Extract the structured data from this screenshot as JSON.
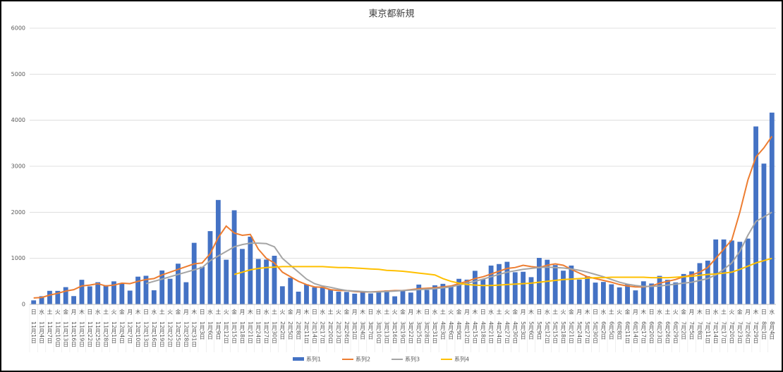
{
  "chart_data": {
    "type": "bar",
    "title": "東京都新規",
    "categories": [
      "11月1日",
      "11月4日",
      "11月7日",
      "11月10日",
      "11月13日",
      "11月16日",
      "11月19日",
      "11月22日",
      "11月25日",
      "11月28日",
      "12月1日",
      "12月4日",
      "12月7日",
      "12月10日",
      "12月13日",
      "12月16日",
      "12月19日",
      "12月22日",
      "12月25日",
      "12月28日",
      "12月31日",
      "1月3日",
      "1月6日",
      "1月9日",
      "1月12日",
      "1月15日",
      "1月18日",
      "1月21日",
      "1月24日",
      "1月27日",
      "1月30日",
      "2月2日",
      "2月5日",
      "2月8日",
      "2月11日",
      "2月14日",
      "2月17日",
      "2月20日",
      "2月23日",
      "2月26日",
      "3月1日",
      "3月4日",
      "3月7日",
      "3月10日",
      "3月13日",
      "3月16日",
      "3月19日",
      "3月22日",
      "3月25日",
      "3月28日",
      "3月31日",
      "4月3日",
      "4月6日",
      "4月9日",
      "4月12日",
      "4月15日",
      "4月18日",
      "4月21日",
      "4月24日",
      "4月27日",
      "4月30日",
      "5月3日",
      "5月6日",
      "5月9日",
      "5月12日",
      "5月15日",
      "5月18日",
      "5月21日",
      "5月24日",
      "5月27日",
      "5月30日",
      "6月2日",
      "6月5日",
      "6月8日",
      "6月11日",
      "6月14日",
      "6月17日",
      "6月20日",
      "6月23日",
      "6月26日",
      "6月29日",
      "7月2日",
      "7月5日",
      "7月8日",
      "7月11日",
      "7月14日",
      "7月17日",
      "7月20日",
      "7月23日",
      "7月26日",
      "7月29日",
      "8月1日",
      "8月4日"
    ],
    "weekdays": [
      "日",
      "水",
      "土",
      "火",
      "金",
      "月",
      "木",
      "日",
      "水",
      "土",
      "火",
      "金",
      "月",
      "木",
      "日",
      "水",
      "土",
      "火",
      "金",
      "月",
      "木",
      "日",
      "水",
      "土",
      "火",
      "金",
      "月",
      "木",
      "日",
      "水",
      "土",
      "火",
      "金",
      "月",
      "木",
      "日",
      "水",
      "土",
      "火",
      "金",
      "月",
      "木",
      "日",
      "水",
      "土",
      "火",
      "金",
      "月",
      "木",
      "日",
      "水",
      "土",
      "火",
      "金",
      "月",
      "木",
      "日",
      "水",
      "土",
      "火",
      "金",
      "月",
      "木",
      "日",
      "水",
      "土",
      "火",
      "金",
      "月",
      "木",
      "日",
      "水",
      "土",
      "火",
      "金",
      "月",
      "木",
      "日",
      "水",
      "土",
      "火",
      "金",
      "月",
      "木",
      "日",
      "水",
      "土",
      "火",
      "金",
      "月",
      "木",
      "日",
      "水"
    ],
    "series": [
      {
        "name": "系列1",
        "color": "#4472c4",
        "values": [
          87,
          177,
          294,
          293,
          374,
          180,
          534,
          391,
          481,
          418,
          500,
          449,
          299,
          602,
          621,
          306,
          736,
          556,
          884,
          481,
          1337,
          816,
          1591,
          2268,
          970,
          2044,
          1204,
          1471,
          986,
          973,
          1056,
          393,
          577,
          276,
          434,
          371,
          378,
          327,
          275,
          270,
          232,
          279,
          237,
          290,
          304,
          175,
          303,
          256,
          430,
          313,
          414,
          446,
          399,
          555,
          537,
          729,
          543,
          843,
          876,
          925,
          698,
          708,
          591,
          1010,
          969,
          854,
          732,
          843,
          538,
          612,
          473,
          487,
          436,
          369,
          439,
          304,
          501,
          453,
          619,
          534,
          476,
          660,
          716,
          896,
          950,
          1410,
          1410,
          1387,
          1359,
          1429,
          3865,
          3058,
          4166
        ]
      },
      {
        "name": "系列2",
        "color": "#ed7d31",
        "values": [
          140,
          150,
          200,
          240,
          290,
          320,
          400,
          420,
          450,
          400,
          420,
          460,
          450,
          500,
          540,
          560,
          640,
          700,
          760,
          820,
          880,
          900,
          1100,
          1450,
          1700,
          1550,
          1500,
          1520,
          1200,
          1000,
          900,
          700,
          600,
          500,
          430,
          380,
          370,
          320,
          300,
          300,
          280,
          270,
          270,
          280,
          290,
          300,
          300,
          320,
          340,
          350,
          360,
          380,
          400,
          450,
          500,
          560,
          600,
          660,
          720,
          780,
          800,
          850,
          820,
          800,
          850,
          880,
          850,
          760,
          680,
          600,
          560,
          520,
          480,
          430,
          400,
          380,
          380,
          400,
          460,
          500,
          540,
          600,
          640,
          700,
          800,
          1000,
          1200,
          1400,
          2000,
          2700,
          3200,
          3400,
          3650
        ]
      },
      {
        "name": "系列3",
        "color": "#a5a5a5",
        "values": [
          null,
          null,
          null,
          null,
          null,
          null,
          null,
          null,
          null,
          null,
          null,
          null,
          null,
          null,
          450,
          500,
          550,
          600,
          650,
          700,
          750,
          800,
          950,
          1050,
          1150,
          1250,
          1300,
          1330,
          1330,
          1320,
          1250,
          1000,
          850,
          700,
          550,
          450,
          400,
          370,
          330,
          300,
          290,
          280,
          270,
          270,
          280,
          290,
          300,
          310,
          320,
          330,
          340,
          360,
          380,
          420,
          460,
          500,
          550,
          600,
          650,
          700,
          730,
          760,
          780,
          800,
          810,
          800,
          790,
          770,
          740,
          700,
          650,
          600,
          540,
          480,
          440,
          410,
          390,
          390,
          400,
          420,
          440,
          460,
          480,
          520,
          560,
          640,
          760,
          900,
          1150,
          1500,
          1800,
          1900,
          2000
        ]
      },
      {
        "name": "系列4",
        "color": "#ffc000",
        "values": [
          null,
          null,
          null,
          null,
          null,
          null,
          null,
          null,
          null,
          null,
          null,
          null,
          null,
          null,
          null,
          null,
          null,
          null,
          null,
          null,
          null,
          null,
          null,
          null,
          null,
          650,
          700,
          750,
          780,
          800,
          810,
          820,
          820,
          820,
          820,
          820,
          820,
          810,
          800,
          800,
          790,
          780,
          770,
          760,
          740,
          730,
          720,
          700,
          680,
          660,
          640,
          560,
          500,
          460,
          430,
          420,
          410,
          410,
          420,
          430,
          440,
          450,
          460,
          480,
          500,
          520,
          540,
          550,
          560,
          570,
          580,
          580,
          590,
          590,
          590,
          590,
          590,
          580,
          580,
          580,
          590,
          600,
          610,
          630,
          650,
          660,
          680,
          700,
          760,
          830,
          900,
          950,
          1000
        ]
      }
    ],
    "ylim": [
      0,
      6000
    ],
    "yticks": [
      0,
      1000,
      2000,
      3000,
      4000,
      5000,
      6000
    ],
    "grid": true,
    "legend": "bottom"
  }
}
